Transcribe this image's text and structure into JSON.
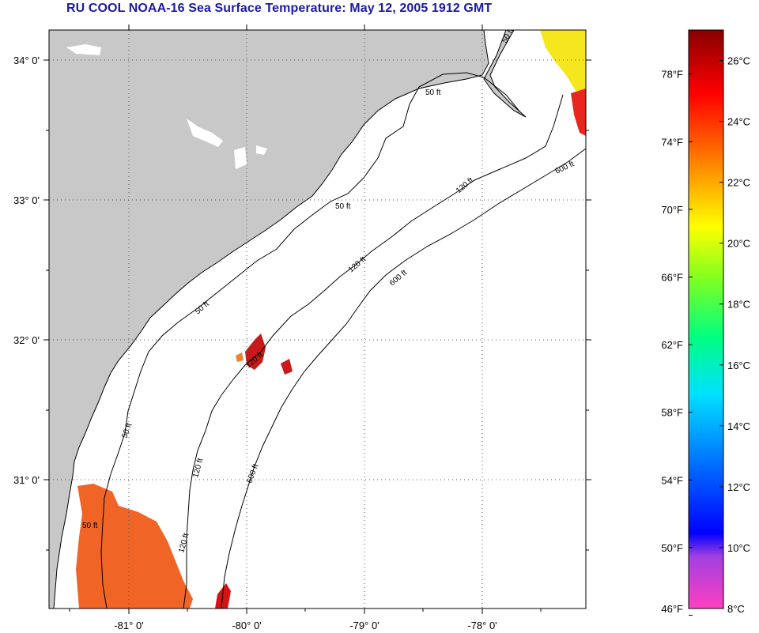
{
  "title": "RU COOL  NOAA-16  Sea Surface Temperature:  May 12, 2005 1912 GMT",
  "map": {
    "lat_labels": [
      "34° 0'",
      "33° 0'",
      "32° 0'",
      "31° 0'"
    ],
    "lon_labels": [
      "-81° 0'",
      "-80° 0'",
      "-79° 0'",
      "-78° 0'"
    ],
    "contour_labels": [
      "50 ft",
      "50 ft",
      "50 ft",
      "50 ft",
      "50 ft",
      "50 ft",
      "120 ft",
      "120 ft",
      "120 ft",
      "120 ft",
      "120 ft",
      "600 ft",
      "600 ft",
      "600 ft"
    ],
    "colors": {
      "land": "#c8c8c8",
      "ocean": "#ffffff",
      "grid": "#555555",
      "sst_warm": "#ff5a1e",
      "sst_hot": "#d41414",
      "sst_yellow": "#f5e61e"
    }
  },
  "colorbar": {
    "fahrenheit": [
      "78°F",
      "74°F",
      "70°F",
      "66°F",
      "62°F",
      "58°F",
      "54°F",
      "50°F",
      "46°F"
    ],
    "celsius": [
      "26°C",
      "24°C",
      "22°C",
      "20°C",
      "18°C",
      "16°C",
      "14°C",
      "12°C",
      "10°C",
      "8°C"
    ],
    "range_celsius": [
      8,
      27
    ]
  }
}
